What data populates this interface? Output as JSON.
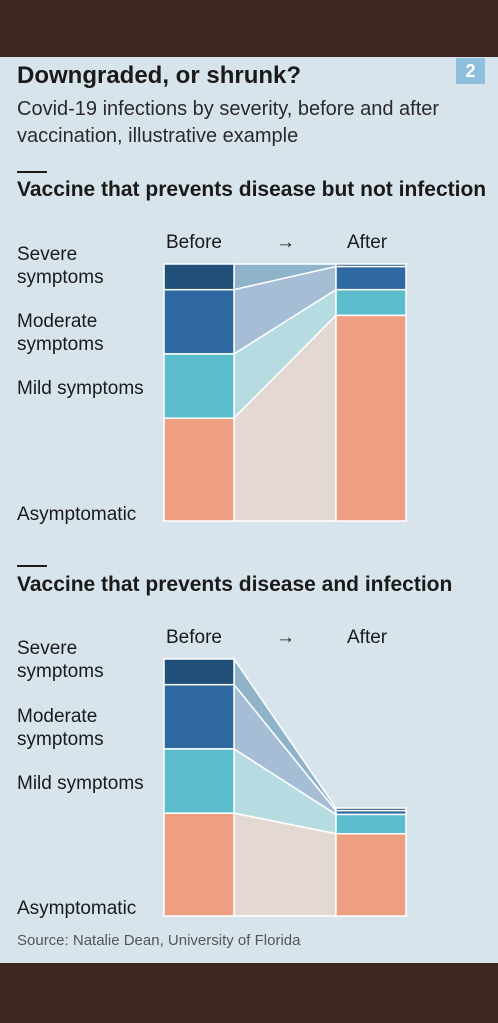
{
  "header": {
    "badge": "2",
    "title": "Downgraded, or shrunk?",
    "subtitle": "Covid-19 infections by severity, before and after vaccination, illustrative example"
  },
  "source": "Source: Natalie Dean, University of Florida",
  "colors": {
    "severe": "#1f4e79",
    "moderate": "#2e6aa1",
    "mild": "#5bbccc",
    "asymptomatic": "#ee9f81",
    "flow_severe": "#8fb3c9",
    "flow_moderate": "#a6bdd6",
    "flow_mild": "#b6dce2",
    "flow_asymptomatic": "#e4d8d2"
  },
  "chart_data": [
    {
      "type": "bar",
      "title": "Vaccine that prevents disease but not infection",
      "row_labels": [
        "Severe symptoms",
        "Moderate symptoms",
        "Mild symptoms",
        "Asymptomatic"
      ],
      "categories": [
        "Before",
        "After"
      ],
      "arrow": "→",
      "series": [
        {
          "name": "Severe symptoms",
          "values": [
            10,
            1
          ]
        },
        {
          "name": "Moderate symptoms",
          "values": [
            25,
            9
          ]
        },
        {
          "name": "Mild symptoms",
          "values": [
            25,
            10
          ]
        },
        {
          "name": "Asymptomatic",
          "values": [
            40,
            80
          ]
        }
      ],
      "ylim": [
        0,
        100
      ]
    },
    {
      "type": "bar",
      "title": "Vaccine that prevents disease and infection",
      "row_labels": [
        "Severe symptoms",
        "Moderate symptoms",
        "Mild symptoms",
        "Asymptomatic"
      ],
      "categories": [
        "Before",
        "After"
      ],
      "arrow": "→",
      "series": [
        {
          "name": "Severe symptoms",
          "values": [
            10,
            1
          ]
        },
        {
          "name": "Moderate symptoms",
          "values": [
            25,
            1.5
          ]
        },
        {
          "name": "Mild symptoms",
          "values": [
            25,
            7.5
          ]
        },
        {
          "name": "Asymptomatic",
          "values": [
            40,
            32
          ]
        }
      ],
      "ylim": [
        0,
        100
      ]
    }
  ]
}
